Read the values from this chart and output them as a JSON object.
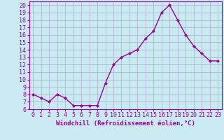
{
  "x": [
    0,
    1,
    2,
    3,
    4,
    5,
    6,
    7,
    8,
    9,
    10,
    11,
    12,
    13,
    14,
    15,
    16,
    17,
    18,
    19,
    20,
    21,
    22,
    23
  ],
  "y": [
    8,
    7.5,
    7,
    8,
    7.5,
    6.5,
    6.5,
    6.5,
    6.5,
    9.5,
    12,
    13,
    13.5,
    14,
    15.5,
    16.5,
    19,
    20,
    18,
    16,
    14.5,
    13.5,
    12.5,
    12.5
  ],
  "line_color": "#990099",
  "marker": "D",
  "marker_size": 2,
  "bg_color": "#c8eaf0",
  "grid_color": "#aaaacc",
  "xlabel": "Windchill (Refroidissement éolien,°C)",
  "xlabel_color": "#990099",
  "tick_color": "#990099",
  "spine_color": "#990099",
  "ylim": [
    6,
    20.5
  ],
  "xlim": [
    -0.5,
    23.5
  ],
  "yticks": [
    6,
    7,
    8,
    9,
    10,
    11,
    12,
    13,
    14,
    15,
    16,
    17,
    18,
    19,
    20
  ],
  "xticks": [
    0,
    1,
    2,
    3,
    4,
    5,
    6,
    7,
    8,
    9,
    10,
    11,
    12,
    13,
    14,
    15,
    16,
    17,
    18,
    19,
    20,
    21,
    22,
    23
  ],
  "font_size": 6,
  "line_width": 1.0
}
